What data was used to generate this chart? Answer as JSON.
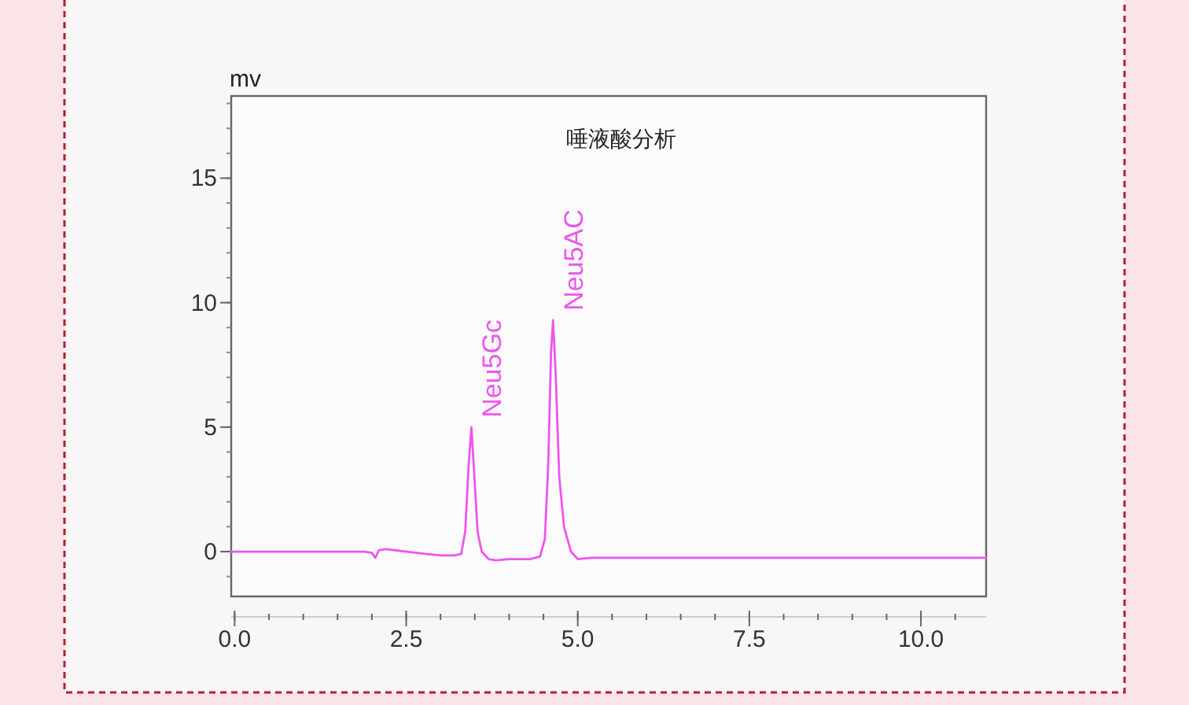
{
  "chart_data": {
    "type": "line",
    "title": "唾液酸分析",
    "ylabel": "mv",
    "xlim": [
      -0.05,
      10.95
    ],
    "ylim": [
      -1.8,
      18.3
    ],
    "xticks": [
      {
        "value": 0,
        "label": "0.0"
      },
      {
        "value": 2.5,
        "label": "2.5"
      },
      {
        "value": 5,
        "label": "5.0"
      },
      {
        "value": 7.5,
        "label": "7.5"
      },
      {
        "value": 10,
        "label": "10.0"
      }
    ],
    "yticks": [
      0,
      5,
      10,
      15
    ],
    "series": [
      {
        "color": "#ee55ee",
        "x": [
          -0.05,
          1.0,
          1.9,
          2.0,
          2.05,
          2.1,
          2.2,
          2.5,
          2.8,
          3.0,
          3.2,
          3.3,
          3.36,
          3.41,
          3.45,
          3.49,
          3.54,
          3.6,
          3.7,
          3.8,
          4.0,
          4.3,
          4.45,
          4.52,
          4.57,
          4.61,
          4.64,
          4.68,
          4.73,
          4.8,
          4.9,
          5.0,
          5.2,
          6.0,
          8.0,
          10.95
        ],
        "values": [
          0,
          0,
          0,
          -0.05,
          -0.25,
          0.05,
          0.1,
          0,
          -0.1,
          -0.15,
          -0.15,
          -0.1,
          0.8,
          3.5,
          5.0,
          3.2,
          0.8,
          0.0,
          -0.3,
          -0.35,
          -0.3,
          -0.3,
          -0.2,
          0.5,
          3.5,
          8.0,
          9.3,
          7.0,
          3.0,
          1.0,
          0.0,
          -0.3,
          -0.25,
          -0.25,
          -0.25,
          -0.25
        ]
      }
    ],
    "annotations": [
      {
        "text": "Neu5Gc",
        "x": 3.45,
        "y": 5.0
      },
      {
        "text": "Neu5AC",
        "x": 4.64,
        "y": 9.3
      }
    ]
  }
}
